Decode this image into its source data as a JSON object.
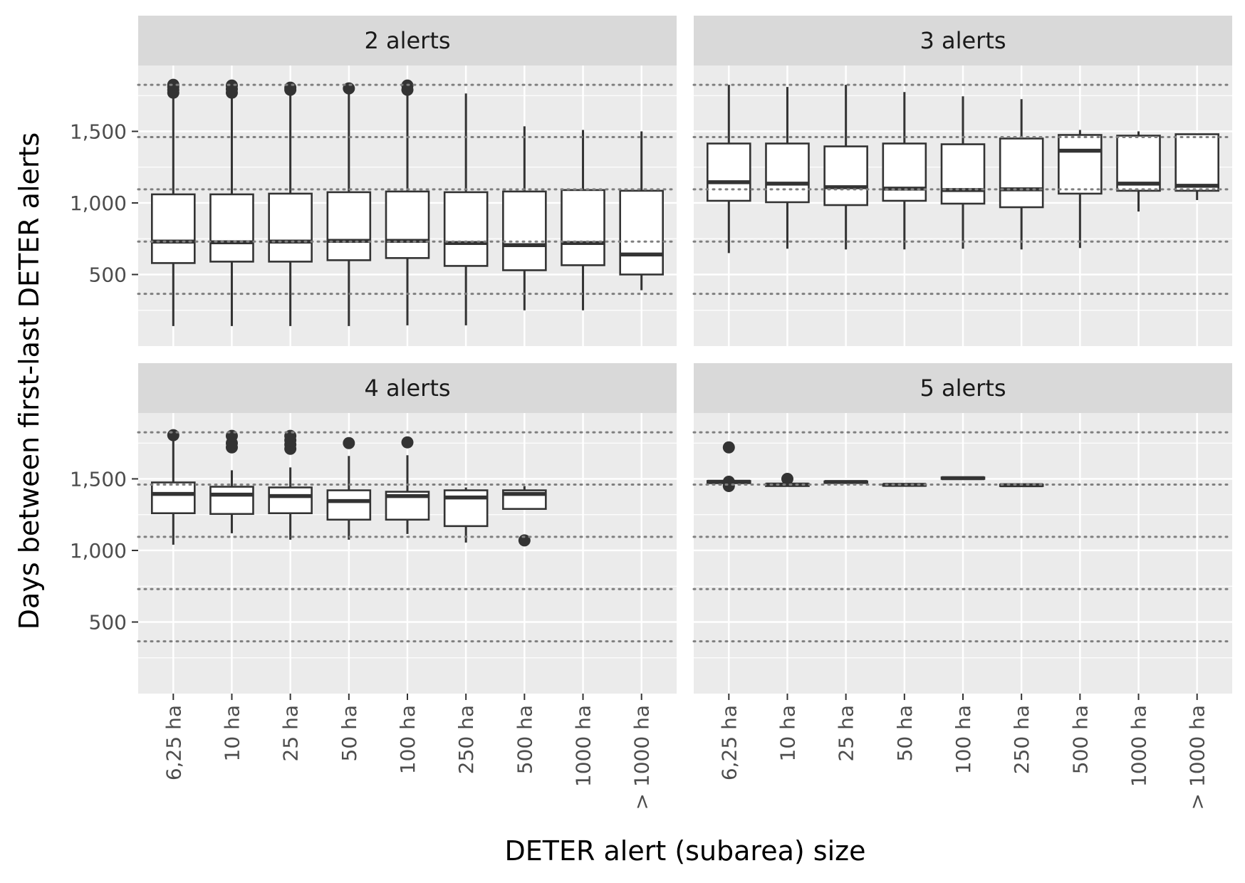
{
  "chart_data": {
    "type": "boxplot",
    "xlabel": "DETER alert (subarea) size",
    "ylabel": "Days between first-last DETER alerts",
    "categories": [
      "6,25 ha",
      "10 ha",
      "25 ha",
      "50 ha",
      "100 ha",
      "250 ha",
      "500 ha",
      "1000 ha",
      "> 1000 ha"
    ],
    "y_ticks": [
      500,
      1000,
      1500
    ],
    "y_tick_labels": [
      "500",
      "1,000",
      "1,500"
    ],
    "ylim": [
      0,
      1960
    ],
    "reference_lines": [
      365,
      730,
      1095,
      1460,
      1825
    ],
    "colors": {
      "panel_background": "#ebebeb",
      "strip_background": "#d9d9d9",
      "box_fill": "#ffffff",
      "box_line": "#333333",
      "reference_line": "#7f7f7f"
    },
    "panels": [
      {
        "title": "2 alerts",
        "boxes": [
          {
            "category": "6,25 ha",
            "low": 140,
            "q1": 580,
            "median": 730,
            "q3": 1060,
            "high": 1825,
            "outliers": [
              1770,
              1790,
              1810,
              1825
            ]
          },
          {
            "category": "10 ha",
            "low": 140,
            "q1": 590,
            "median": 725,
            "q3": 1060,
            "high": 1825,
            "outliers": [
              1770,
              1795,
              1820
            ]
          },
          {
            "category": "25 ha",
            "low": 140,
            "q1": 590,
            "median": 730,
            "q3": 1065,
            "high": 1810,
            "outliers": [
              1790,
              1805
            ]
          },
          {
            "category": "50 ha",
            "low": 140,
            "q1": 600,
            "median": 735,
            "q3": 1075,
            "high": 1800,
            "outliers": [
              1800
            ]
          },
          {
            "category": "100 ha",
            "low": 145,
            "q1": 615,
            "median": 735,
            "q3": 1080,
            "high": 1825,
            "outliers": [
              1790,
              1820
            ]
          },
          {
            "category": "250 ha",
            "low": 145,
            "q1": 560,
            "median": 720,
            "q3": 1075,
            "high": 1765,
            "outliers": []
          },
          {
            "category": "500 ha",
            "low": 250,
            "q1": 530,
            "median": 705,
            "q3": 1080,
            "high": 1535,
            "outliers": []
          },
          {
            "category": "1000 ha",
            "low": 250,
            "q1": 565,
            "median": 720,
            "q3": 1090,
            "high": 1510,
            "outliers": []
          },
          {
            "category": "> 1000 ha",
            "low": 390,
            "q1": 500,
            "median": 640,
            "q3": 1085,
            "high": 1500,
            "outliers": []
          }
        ]
      },
      {
        "title": "3 alerts",
        "boxes": [
          {
            "category": "6,25 ha",
            "low": 650,
            "q1": 1015,
            "median": 1145,
            "q3": 1415,
            "high": 1825,
            "outliers": []
          },
          {
            "category": "10 ha",
            "low": 680,
            "q1": 1005,
            "median": 1135,
            "q3": 1415,
            "high": 1810,
            "outliers": []
          },
          {
            "category": "25 ha",
            "low": 675,
            "q1": 985,
            "median": 1110,
            "q3": 1395,
            "high": 1825,
            "outliers": []
          },
          {
            "category": "50 ha",
            "low": 675,
            "q1": 1015,
            "median": 1100,
            "q3": 1415,
            "high": 1775,
            "outliers": []
          },
          {
            "category": "100 ha",
            "low": 680,
            "q1": 995,
            "median": 1090,
            "q3": 1410,
            "high": 1745,
            "outliers": []
          },
          {
            "category": "250 ha",
            "low": 675,
            "q1": 970,
            "median": 1095,
            "q3": 1450,
            "high": 1725,
            "outliers": []
          },
          {
            "category": "500 ha",
            "low": 685,
            "q1": 1065,
            "median": 1365,
            "q3": 1475,
            "high": 1510,
            "outliers": []
          },
          {
            "category": "1000 ha",
            "low": 940,
            "q1": 1085,
            "median": 1135,
            "q3": 1470,
            "high": 1500,
            "outliers": []
          },
          {
            "category": "> 1000 ha",
            "low": 1020,
            "q1": 1085,
            "median": 1120,
            "q3": 1480,
            "high": 1480,
            "outliers": []
          }
        ]
      },
      {
        "title": "4 alerts",
        "boxes": [
          {
            "category": "6,25 ha",
            "low": 1040,
            "q1": 1260,
            "median": 1395,
            "q3": 1475,
            "high": 1805,
            "outliers": [
              1805
            ]
          },
          {
            "category": "10 ha",
            "low": 1120,
            "q1": 1255,
            "median": 1390,
            "q3": 1445,
            "high": 1560,
            "outliers": [
              1720,
              1750,
              1800
            ]
          },
          {
            "category": "25 ha",
            "low": 1075,
            "q1": 1260,
            "median": 1380,
            "q3": 1440,
            "high": 1580,
            "outliers": [
              1710,
              1740,
              1770,
              1800
            ]
          },
          {
            "category": "50 ha",
            "low": 1075,
            "q1": 1215,
            "median": 1345,
            "q3": 1420,
            "high": 1660,
            "outliers": [
              1750
            ]
          },
          {
            "category": "100 ha",
            "low": 1115,
            "q1": 1215,
            "median": 1380,
            "q3": 1410,
            "high": 1665,
            "outliers": [
              1755
            ]
          },
          {
            "category": "250 ha",
            "low": 1055,
            "q1": 1170,
            "median": 1370,
            "q3": 1420,
            "high": 1440,
            "outliers": []
          },
          {
            "category": "500 ha",
            "low": 1290,
            "q1": 1290,
            "median": 1395,
            "q3": 1420,
            "high": 1450,
            "outliers": [
              1070
            ]
          }
        ]
      },
      {
        "title": "5 alerts",
        "boxes": [
          {
            "category": "6,25 ha",
            "low": 1470,
            "q1": 1470,
            "median": 1480,
            "q3": 1485,
            "high": 1485,
            "outliers": [
              1450,
              1480,
              1720
            ]
          },
          {
            "category": "10 ha",
            "low": 1450,
            "q1": 1450,
            "median": 1460,
            "q3": 1465,
            "high": 1465,
            "outliers": [
              1500
            ]
          },
          {
            "category": "25 ha",
            "low": 1475,
            "q1": 1475,
            "median": 1478,
            "q3": 1482,
            "high": 1482,
            "outliers": []
          },
          {
            "category": "50 ha",
            "low": 1455,
            "q1": 1455,
            "median": 1458,
            "q3": 1462,
            "high": 1462,
            "outliers": []
          },
          {
            "category": "100 ha",
            "low": 1500,
            "q1": 1500,
            "median": 1505,
            "q3": 1510,
            "high": 1510,
            "outliers": []
          },
          {
            "category": "250 ha",
            "low": 1452,
            "q1": 1452,
            "median": 1456,
            "q3": 1460,
            "high": 1460,
            "outliers": []
          }
        ]
      }
    ]
  }
}
